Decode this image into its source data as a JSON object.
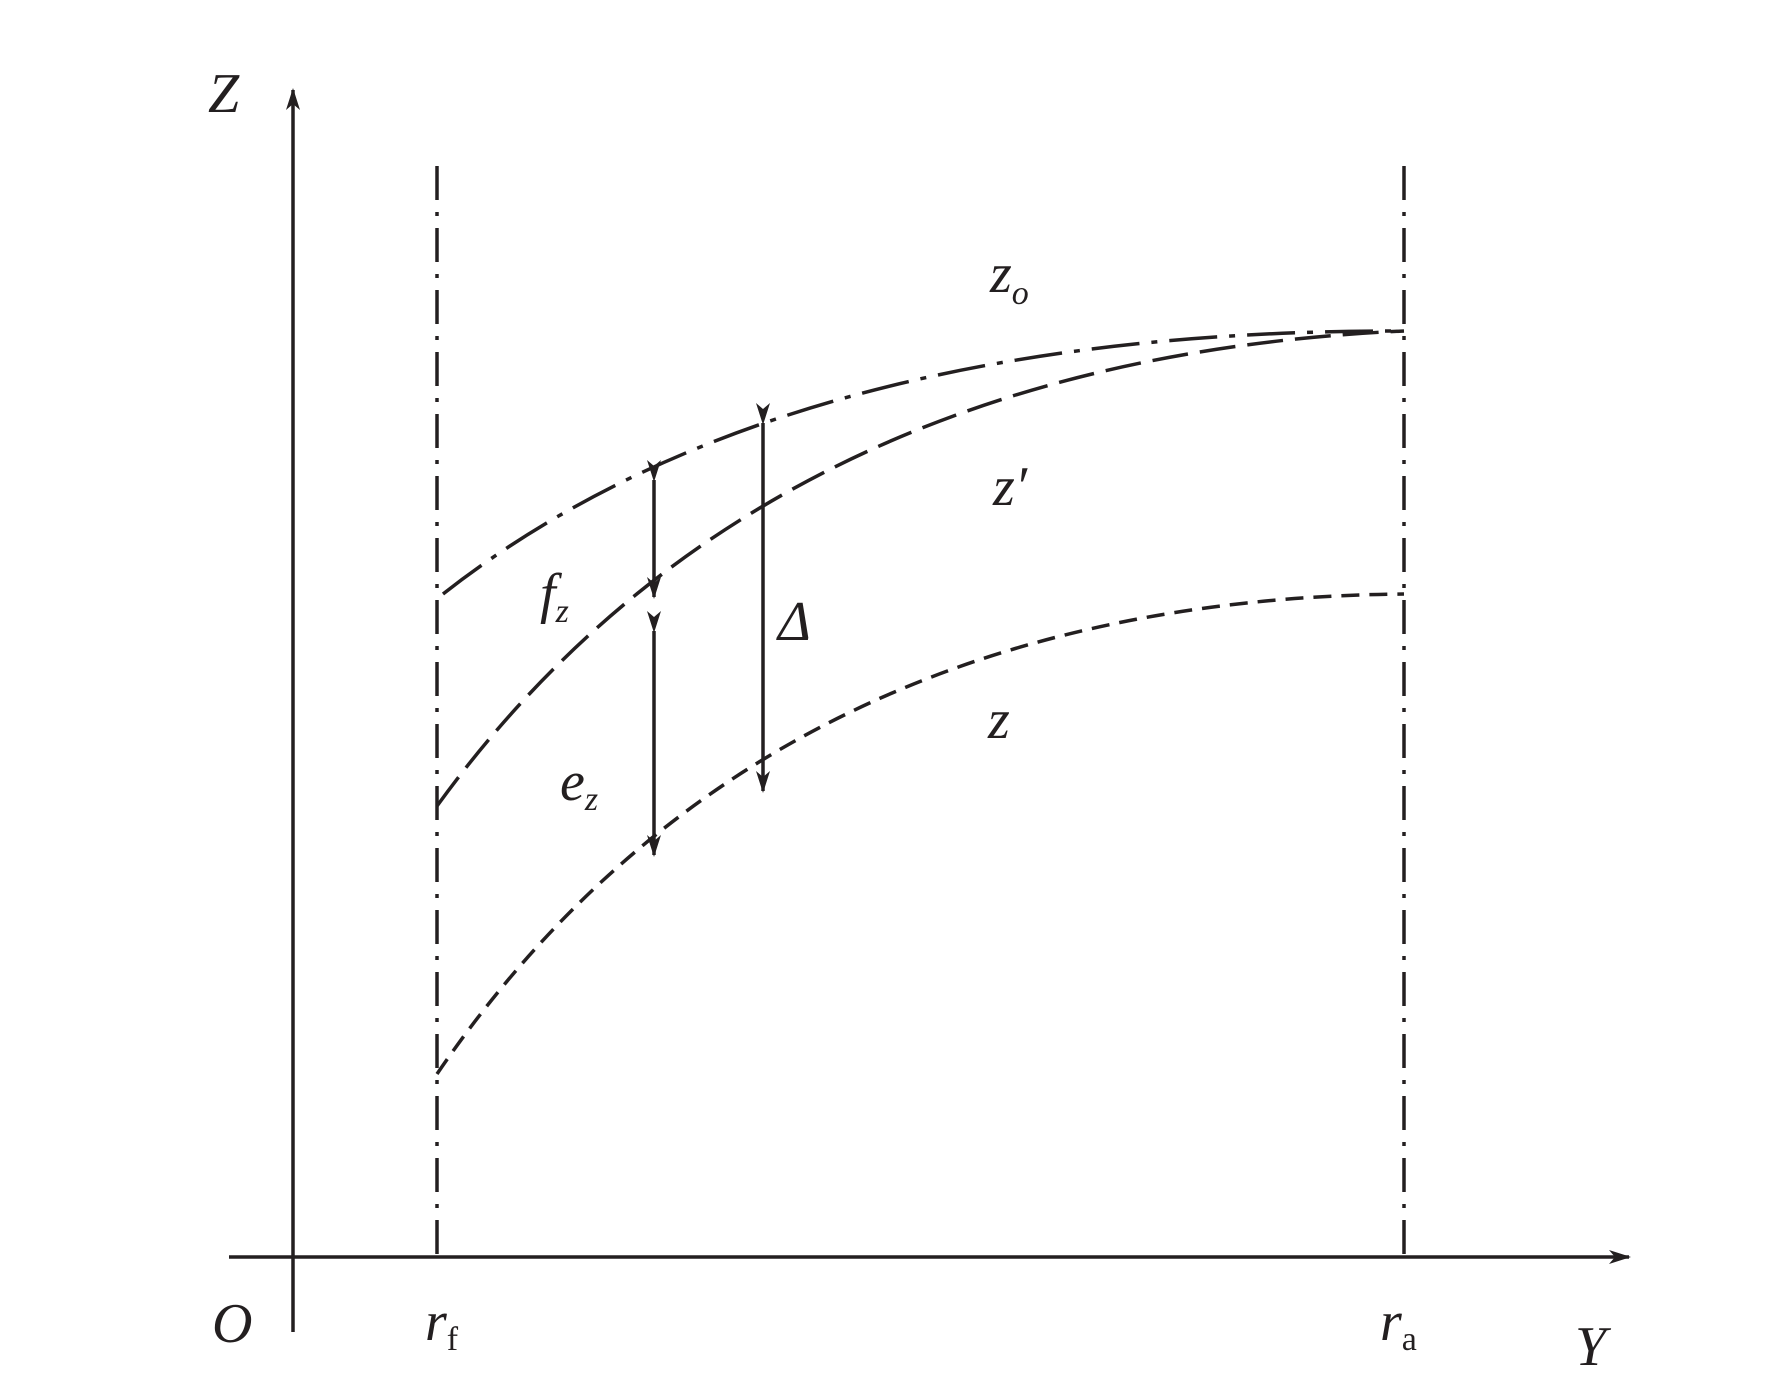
{
  "axes": {
    "z_label": "Z",
    "y_label": "Y",
    "origin_label": "O"
  },
  "markers": {
    "rf": {
      "main": "r",
      "sub": "f"
    },
    "ra": {
      "main": "r",
      "sub": "a"
    }
  },
  "curves": {
    "z_o": {
      "main": "z",
      "sub": "o",
      "style": "dash-dot"
    },
    "z_prime": {
      "label": "z′",
      "style": "long-dash"
    },
    "z": {
      "label": "z",
      "style": "short-dash"
    }
  },
  "dimensions": {
    "f_z": {
      "main": "f",
      "sub": "z"
    },
    "e_z": {
      "main": "e",
      "sub": "z"
    },
    "delta": {
      "label": "Δ"
    }
  },
  "colors": {
    "ink": "#231f20",
    "background": "#ffffff"
  }
}
